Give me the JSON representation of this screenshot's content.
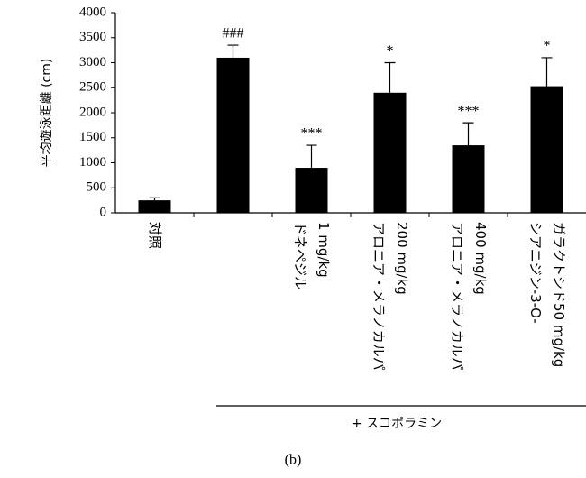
{
  "chart_data": {
    "type": "bar",
    "y_label": "平均遊泳距離 (cm)",
    "categories": [
      [
        "対照"
      ],
      null,
      [
        "ドネペジル",
        "1 mg/kg"
      ],
      [
        "アロニア・メラノカルパ",
        "200 mg/kg"
      ],
      [
        "アロニア・メラノカルパ",
        "400 mg/kg"
      ],
      [
        "シアニジン-3-O-",
        "ガラクトシド50 mg/kg"
      ]
    ],
    "values": [
      250,
      3100,
      900,
      2400,
      1350,
      2530
    ],
    "errors": [
      50,
      250,
      450,
      600,
      450,
      570
    ],
    "annotations": [
      null,
      "###",
      "***",
      "*",
      "***",
      "*"
    ],
    "color": "#000000",
    "ylim": [
      0,
      4000
    ],
    "yticks": [
      0,
      500,
      1000,
      1500,
      2000,
      2500,
      3000,
      3500,
      4000
    ],
    "group_label": "+ スコポラミン",
    "panel_label": "(b)"
  }
}
